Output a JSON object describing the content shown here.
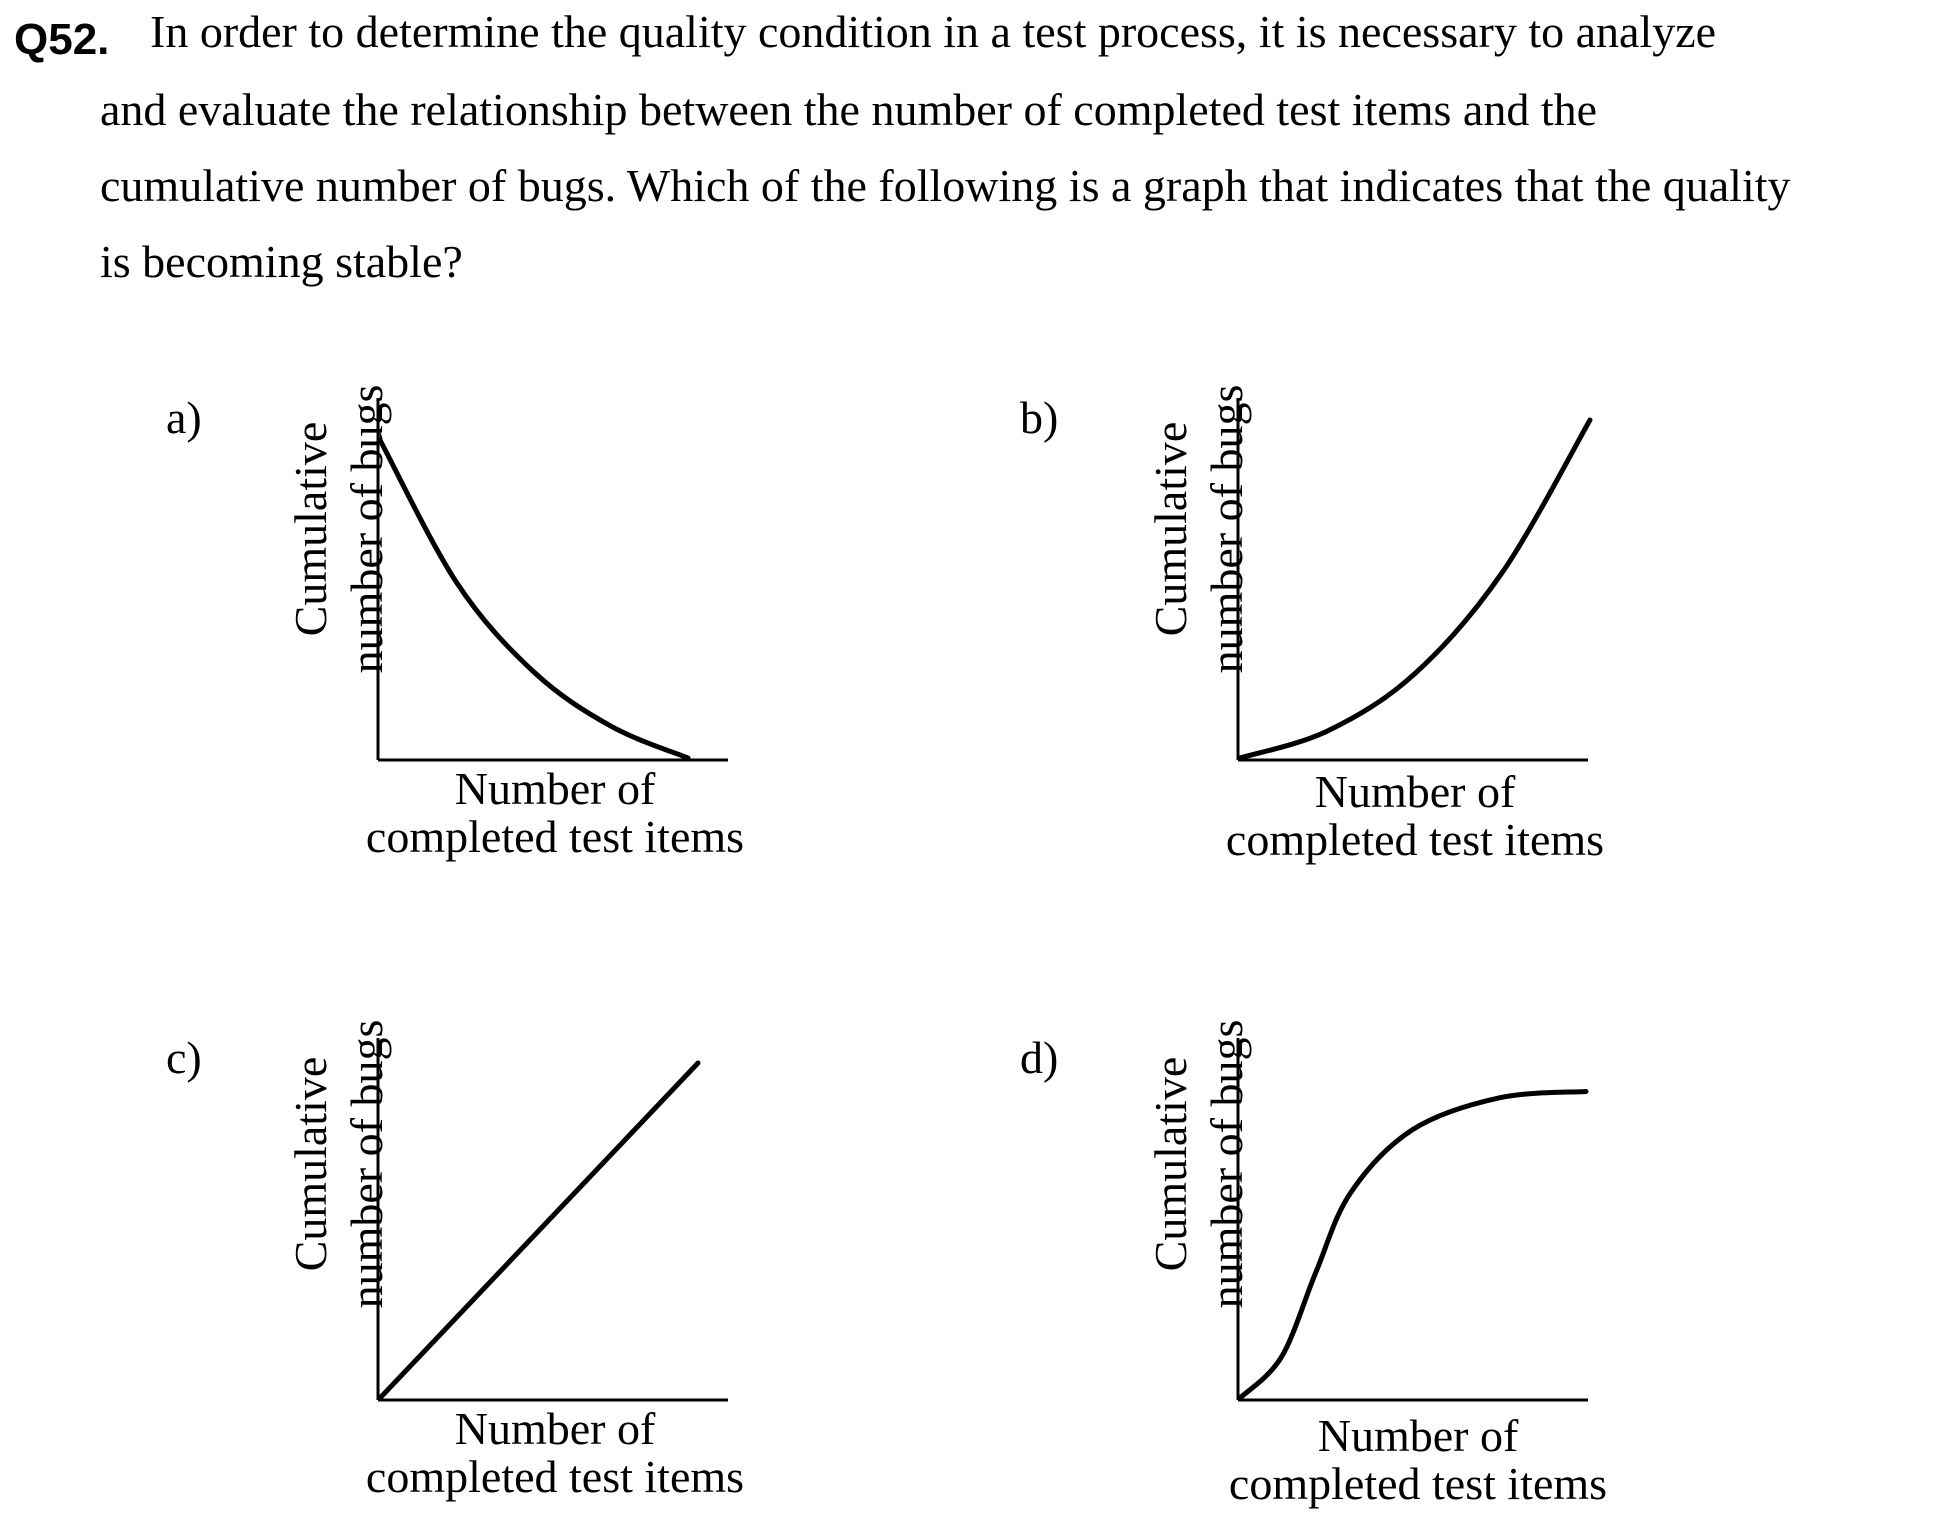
{
  "question": {
    "number": "Q52.",
    "stem_lines": [
      "In order to determine the quality condition in a test process, it is necessary to analyze",
      "and evaluate the relationship between the number of completed test items and the",
      "cumulative number of bugs. Which of the following is a graph that indicates that the quality",
      "is becoming stable?"
    ]
  },
  "chart_data": [
    {
      "type": "line",
      "option": "a)",
      "xlabel": [
        "Number of",
        "completed test items"
      ],
      "ylabel": [
        "Cumulative",
        "number of bugs"
      ],
      "series": [
        {
          "values": [
            [
              0,
              1.0
            ],
            [
              0.25,
              0.55
            ],
            [
              0.5,
              0.27
            ],
            [
              0.75,
              0.1
            ],
            [
              1.0,
              0.0
            ]
          ]
        }
      ]
    },
    {
      "type": "line",
      "option": "b)",
      "xlabel": [
        "Number of",
        "completed test items"
      ],
      "ylabel": [
        "Cumulative",
        "number of bugs"
      ],
      "series": [
        {
          "values": [
            [
              0,
              0.0
            ],
            [
              0.25,
              0.08
            ],
            [
              0.5,
              0.25
            ],
            [
              0.75,
              0.55
            ],
            [
              1.0,
              1.0
            ]
          ]
        }
      ]
    },
    {
      "type": "line",
      "option": "c)",
      "xlabel": [
        "Number of",
        "completed test items"
      ],
      "ylabel": [
        "Cumulative",
        "number of bugs"
      ],
      "series": [
        {
          "values": [
            [
              0,
              0.0
            ],
            [
              1.0,
              1.0
            ]
          ]
        }
      ]
    },
    {
      "type": "line",
      "option": "d)",
      "xlabel": [
        "Number of",
        "completed test items"
      ],
      "ylabel": [
        "Cumulative",
        "number of bugs"
      ],
      "series": [
        {
          "values": [
            [
              0,
              0.0
            ],
            [
              0.12,
              0.13
            ],
            [
              0.22,
              0.4
            ],
            [
              0.32,
              0.65
            ],
            [
              0.5,
              0.85
            ],
            [
              0.75,
              0.95
            ],
            [
              1.0,
              0.97
            ]
          ]
        }
      ]
    }
  ]
}
